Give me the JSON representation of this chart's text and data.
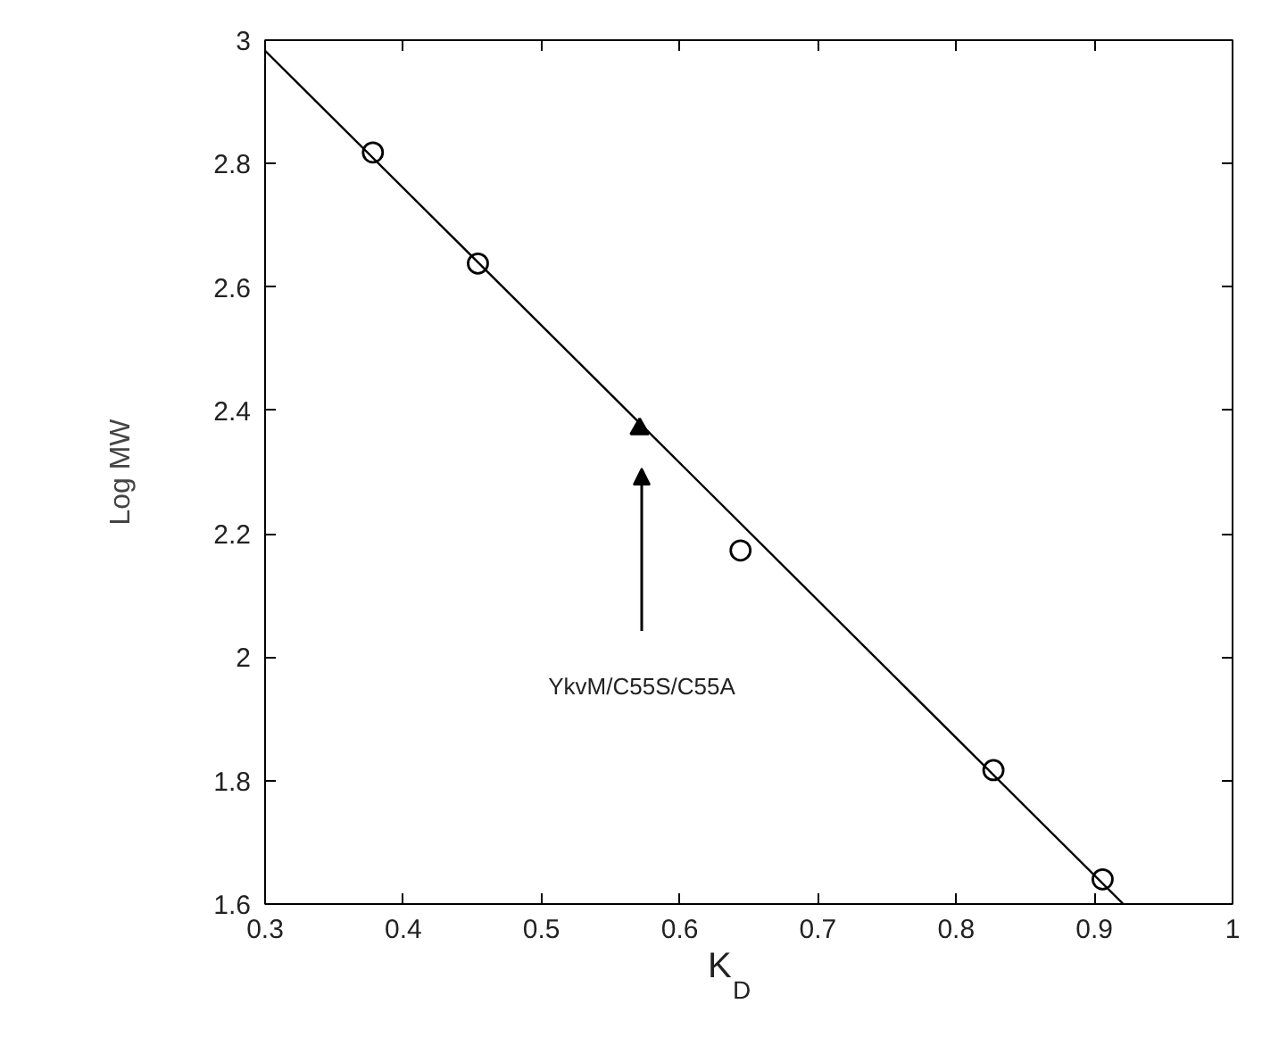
{
  "chart_data": {
    "type": "scatter",
    "xlabel": "K$_{D}$",
    "ylabel": "Log MW",
    "xlim": [
      0.3,
      1.0
    ],
    "xticks": [
      0.3,
      0.4,
      0.5,
      0.6,
      0.7,
      0.8,
      0.9,
      1
    ],
    "ylim": [
      1.6,
      3
    ],
    "yticks": [
      1.6,
      1.8,
      2,
      2.2,
      2.4,
      2.6,
      2.8,
      3
    ],
    "grid": false,
    "series": [
      {
        "type": "line",
        "color": "#000000",
        "marker": "none",
        "x": [
          0.3,
          0.921
        ],
        "values": [
          2.983,
          1.6
        ]
      },
      {
        "color": "#000000",
        "marker": "circle",
        "x": [
          0.378,
          0.454,
          0.644,
          0.827,
          0.906
        ],
        "values": [
          2.818,
          2.638,
          2.173,
          1.817,
          1.64
        ]
      },
      {
        "color": "#000000",
        "marker": "triangle",
        "x": [
          0.571
        ],
        "values": [
          2.37
        ]
      }
    ],
    "annotations": [
      "YkvM/C55S/C55A"
    ]
  }
}
